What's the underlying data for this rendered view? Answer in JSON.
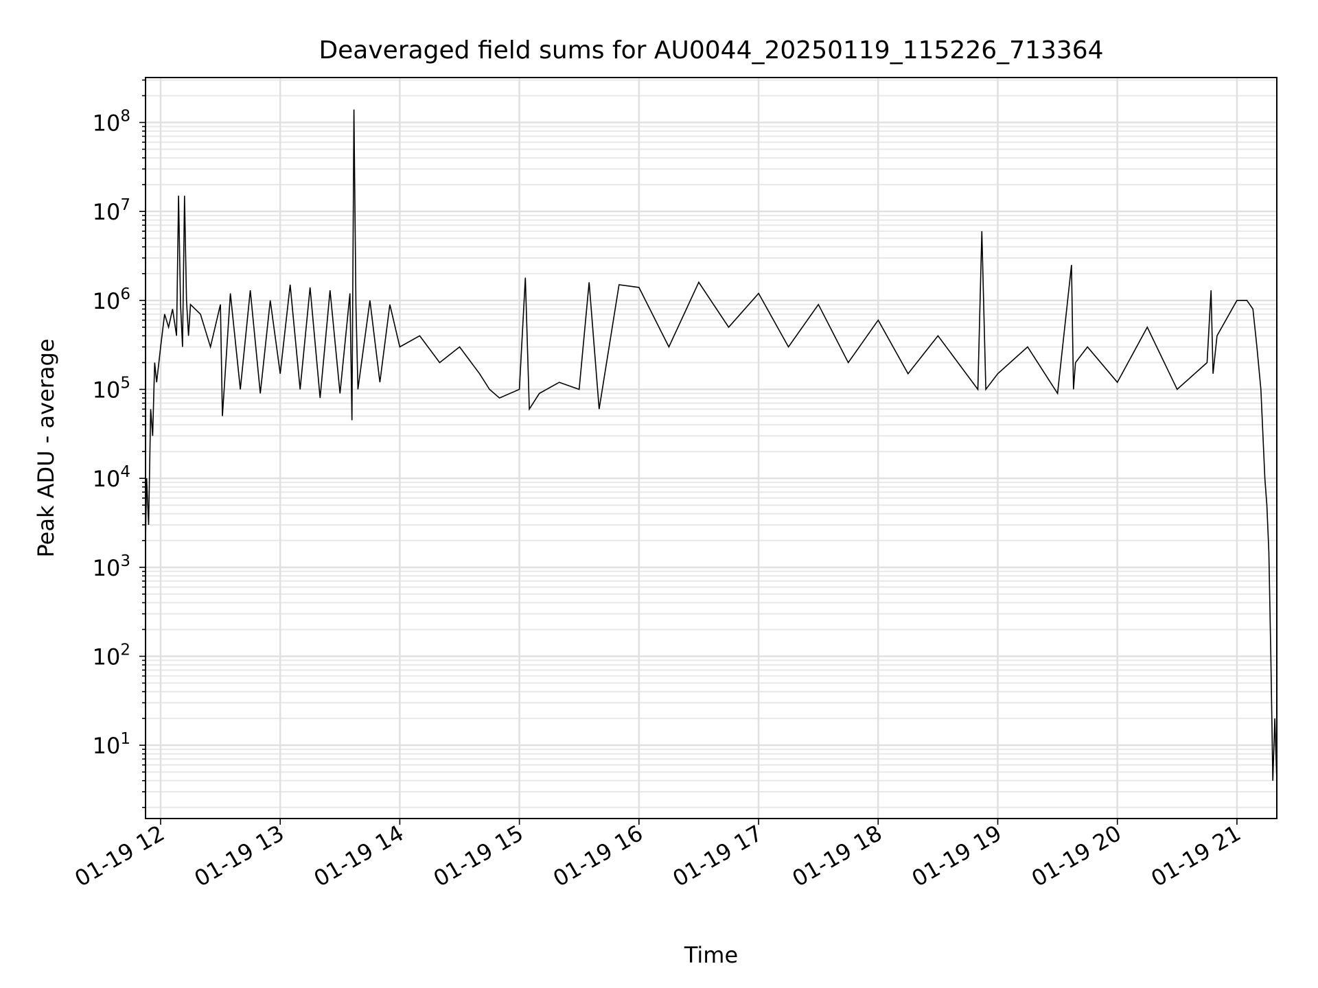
{
  "chart_data": {
    "type": "line",
    "title": "Deaveraged field sums for AU0044_20250119_115226_713364",
    "xlabel": "Time",
    "ylabel": "Peak ADU - average",
    "yscale": "log",
    "ylim": [
      1.5,
      320000000
    ],
    "xlim": [
      "2025-01-19 11:52:26",
      "2025-01-19 21:20:00"
    ],
    "grid": true,
    "legend": "none",
    "colors": {
      "line": "#000000",
      "grid_major": "#e0e0e0",
      "grid_minor": "#e8e8e8",
      "axes": "#000000",
      "background": "#ffffff"
    },
    "x_tick_labels": [
      {
        "label": "01-19 12",
        "time": "2025-01-19 12:00"
      },
      {
        "label": "01-19 13",
        "time": "2025-01-19 13:00"
      },
      {
        "label": "01-19 14",
        "time": "2025-01-19 14:00"
      },
      {
        "label": "01-19 15",
        "time": "2025-01-19 15:00"
      },
      {
        "label": "01-19 16",
        "time": "2025-01-19 16:00"
      },
      {
        "label": "01-19 17",
        "time": "2025-01-19 17:00"
      },
      {
        "label": "01-19 18",
        "time": "2025-01-19 18:00"
      },
      {
        "label": "01-19 19",
        "time": "2025-01-19 19:00"
      },
      {
        "label": "01-19 20",
        "time": "2025-01-19 20:00"
      },
      {
        "label": "01-19 21",
        "time": "2025-01-19 21:00"
      }
    ],
    "y_tick_labels": [
      {
        "base": "10",
        "exp": "1",
        "value": 10
      },
      {
        "base": "10",
        "exp": "2",
        "value": 100
      },
      {
        "base": "10",
        "exp": "3",
        "value": 1000
      },
      {
        "base": "10",
        "exp": "4",
        "value": 10000
      },
      {
        "base": "10",
        "exp": "5",
        "value": 100000
      },
      {
        "base": "10",
        "exp": "6",
        "value": 1000000
      },
      {
        "base": "10",
        "exp": "7",
        "value": 10000000
      },
      {
        "base": "10",
        "exp": "8",
        "value": 100000000
      }
    ],
    "series": [
      {
        "x": [
          "2025-01-19 11:52:26",
          "2025-01-19 11:53:00",
          "2025-01-19 11:54:00",
          "2025-01-19 11:55:00",
          "2025-01-19 11:56:00",
          "2025-01-19 11:57:00",
          "2025-01-19 11:58:00",
          "2025-01-19 12:00:00",
          "2025-01-19 12:02:00",
          "2025-01-19 12:04:00",
          "2025-01-19 12:06:00",
          "2025-01-19 12:08:00",
          "2025-01-19 12:09:00",
          "2025-01-19 12:10:00",
          "2025-01-19 12:11:00",
          "2025-01-19 12:12:00",
          "2025-01-19 12:13:00",
          "2025-01-19 12:14:00",
          "2025-01-19 12:15:00",
          "2025-01-19 12:20:00",
          "2025-01-19 12:25:00",
          "2025-01-19 12:30:00",
          "2025-01-19 12:31:00",
          "2025-01-19 12:35:00",
          "2025-01-19 12:40:00",
          "2025-01-19 12:45:00",
          "2025-01-19 12:50:00",
          "2025-01-19 12:55:00",
          "2025-01-19 13:00:00",
          "2025-01-19 13:05:00",
          "2025-01-19 13:10:00",
          "2025-01-19 13:15:00",
          "2025-01-19 13:20:00",
          "2025-01-19 13:25:00",
          "2025-01-19 13:30:00",
          "2025-01-19 13:35:00",
          "2025-01-19 13:36:00",
          "2025-01-19 13:37:00",
          "2025-01-19 13:38:00",
          "2025-01-19 13:39:00",
          "2025-01-19 13:45:00",
          "2025-01-19 13:50:00",
          "2025-01-19 13:55:00",
          "2025-01-19 14:00:00",
          "2025-01-19 14:10:00",
          "2025-01-19 14:20:00",
          "2025-01-19 14:30:00",
          "2025-01-19 14:40:00",
          "2025-01-19 14:45:00",
          "2025-01-19 14:50:00",
          "2025-01-19 15:00:00",
          "2025-01-19 15:03:00",
          "2025-01-19 15:05:00",
          "2025-01-19 15:10:00",
          "2025-01-19 15:20:00",
          "2025-01-19 15:30:00",
          "2025-01-19 15:35:00",
          "2025-01-19 15:40:00",
          "2025-01-19 15:50:00",
          "2025-01-19 16:00:00",
          "2025-01-19 16:15:00",
          "2025-01-19 16:30:00",
          "2025-01-19 16:45:00",
          "2025-01-19 17:00:00",
          "2025-01-19 17:15:00",
          "2025-01-19 17:30:00",
          "2025-01-19 17:45:00",
          "2025-01-19 18:00:00",
          "2025-01-19 18:15:00",
          "2025-01-19 18:30:00",
          "2025-01-19 18:50:00",
          "2025-01-19 18:52:00",
          "2025-01-19 18:54:00",
          "2025-01-19 19:00:00",
          "2025-01-19 19:15:00",
          "2025-01-19 19:30:00",
          "2025-01-19 19:37:00",
          "2025-01-19 19:38:00",
          "2025-01-19 19:39:00",
          "2025-01-19 19:45:00",
          "2025-01-19 20:00:00",
          "2025-01-19 20:15:00",
          "2025-01-19 20:30:00",
          "2025-01-19 20:45:00",
          "2025-01-19 20:47:00",
          "2025-01-19 20:48:00",
          "2025-01-19 20:50:00",
          "2025-01-19 21:00:00",
          "2025-01-19 21:05:00",
          "2025-01-19 21:08:00",
          "2025-01-19 21:10:00",
          "2025-01-19 21:12:00",
          "2025-01-19 21:14:00",
          "2025-01-19 21:15:00",
          "2025-01-19 21:16:00",
          "2025-01-19 21:17:00",
          "2025-01-19 21:18:00",
          "2025-01-19 21:19:00",
          "2025-01-19 21:20:00"
        ],
        "values": [
          2000,
          10000,
          3000,
          60000,
          30000,
          200000,
          120000,
          300000,
          700000,
          500000,
          800000,
          400000,
          15000000,
          900000,
          300000,
          15000000,
          1000000,
          400000,
          900000,
          700000,
          300000,
          900000,
          50000,
          1200000,
          100000,
          1300000,
          90000,
          1000000,
          150000,
          1500000,
          100000,
          1400000,
          80000,
          1300000,
          90000,
          1200000,
          45000,
          140000000,
          900000,
          100000,
          1000000,
          120000,
          900000,
          300000,
          400000,
          200000,
          300000,
          150000,
          100000,
          80000,
          100000,
          1800000,
          60000,
          90000,
          120000,
          100000,
          1600000,
          60000,
          1500000,
          1400000,
          300000,
          1600000,
          500000,
          1200000,
          300000,
          900000,
          200000,
          600000,
          150000,
          400000,
          100000,
          6000000,
          100000,
          150000,
          300000,
          90000,
          2500000,
          100000,
          200000,
          300000,
          120000,
          500000,
          100000,
          200000,
          1300000,
          150000,
          400000,
          1000000,
          1000000,
          800000,
          300000,
          100000,
          10000,
          5000,
          1500,
          100,
          4,
          20,
          4
        ]
      }
    ]
  }
}
